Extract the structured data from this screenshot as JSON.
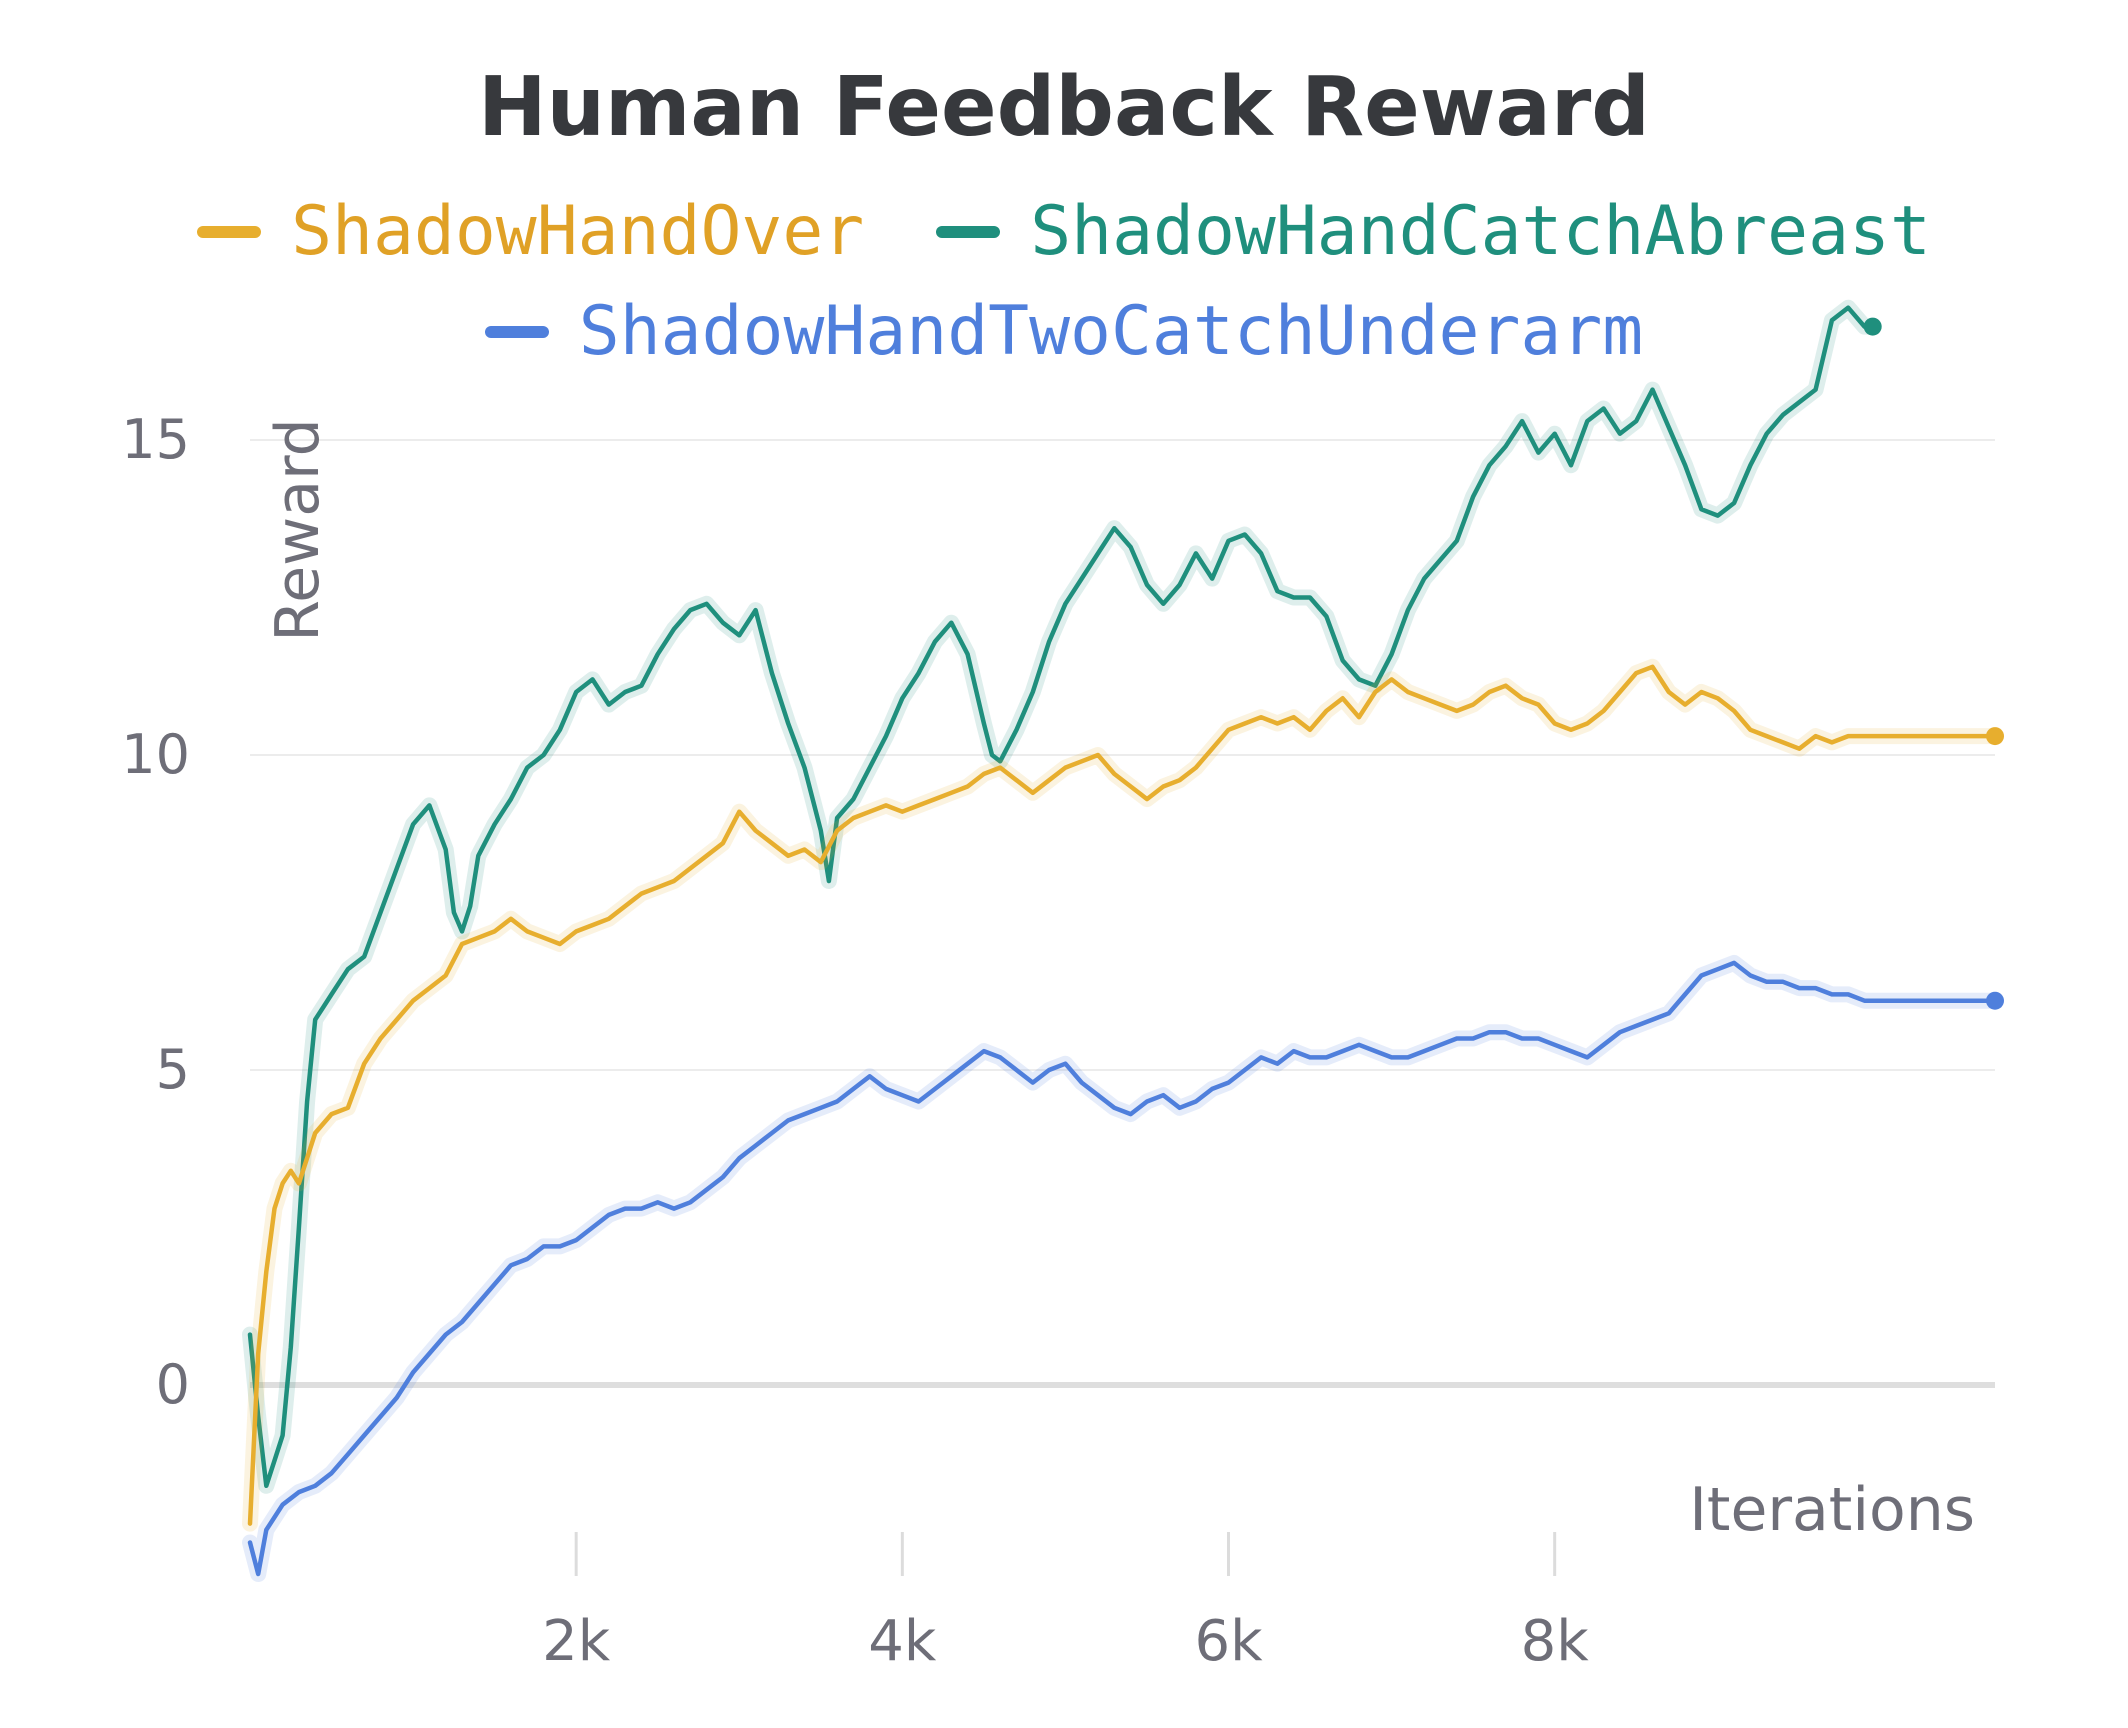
{
  "chart_data": {
    "type": "line",
    "title": "Human Feedback Reward",
    "xlabel": "Iterations",
    "ylabel": "Reward",
    "xlim": [
      0,
      10700
    ],
    "ylim": [
      -3.5,
      18.5
    ],
    "x_ticks": [
      {
        "value": 2000,
        "label": "2k"
      },
      {
        "value": 4000,
        "label": "4k"
      },
      {
        "value": 6000,
        "label": "6k"
      },
      {
        "value": 8000,
        "label": "8k"
      }
    ],
    "y_ticks": [
      {
        "value": 0,
        "label": "0"
      },
      {
        "value": 5,
        "label": "5"
      },
      {
        "value": 10,
        "label": "10"
      },
      {
        "value": 15,
        "label": "15"
      }
    ],
    "grid": "horizontal",
    "legend_position": "top",
    "series": [
      {
        "name": "ShadowHandOver",
        "color": "#e7ae2e",
        "x": [
          0,
          50,
          100,
          150,
          200,
          250,
          300,
          400,
          500,
          600,
          700,
          800,
          900,
          1000,
          1100,
          1200,
          1300,
          1400,
          1500,
          1600,
          1700,
          1800,
          1900,
          2000,
          2100,
          2200,
          2300,
          2400,
          2500,
          2600,
          2700,
          2800,
          2900,
          3000,
          3100,
          3200,
          3300,
          3400,
          3500,
          3600,
          3700,
          3800,
          3900,
          4000,
          4100,
          4200,
          4300,
          4400,
          4500,
          4600,
          4700,
          4800,
          4900,
          5000,
          5100,
          5200,
          5300,
          5400,
          5500,
          5600,
          5700,
          5800,
          5900,
          6000,
          6100,
          6200,
          6300,
          6400,
          6500,
          6600,
          6700,
          6800,
          6900,
          7000,
          7100,
          7200,
          7300,
          7400,
          7500,
          7600,
          7700,
          7800,
          7900,
          8000,
          8100,
          8200,
          8300,
          8400,
          8500,
          8600,
          8700,
          8800,
          8900,
          9000,
          9100,
          9200,
          9300,
          9400,
          9500,
          9600,
          9700,
          9800,
          9900,
          10000,
          10100,
          10200,
          10300,
          10400,
          10500,
          10600,
          10700
        ],
        "values": [
          -2.2,
          0.5,
          1.8,
          2.8,
          3.2,
          3.4,
          3.2,
          4.0,
          4.3,
          4.4,
          5.1,
          5.5,
          5.8,
          6.1,
          6.3,
          6.5,
          7.0,
          7.1,
          7.2,
          7.4,
          7.2,
          7.1,
          7.0,
          7.2,
          7.3,
          7.4,
          7.6,
          7.8,
          7.9,
          8.0,
          8.2,
          8.4,
          8.6,
          9.1,
          8.8,
          8.6,
          8.4,
          8.5,
          8.3,
          8.8,
          9.0,
          9.1,
          9.2,
          9.1,
          9.2,
          9.3,
          9.4,
          9.5,
          9.7,
          9.8,
          9.6,
          9.4,
          9.6,
          9.8,
          9.9,
          10.0,
          9.7,
          9.5,
          9.3,
          9.5,
          9.6,
          9.8,
          10.1,
          10.4,
          10.5,
          10.6,
          10.5,
          10.6,
          10.4,
          10.7,
          10.9,
          10.6,
          11.0,
          11.2,
          11.0,
          10.9,
          10.8,
          10.7,
          10.8,
          11.0,
          11.1,
          10.9,
          10.8,
          10.5,
          10.4,
          10.5,
          10.7,
          11.0,
          11.3,
          11.4,
          11.0,
          10.8,
          11.0,
          10.9,
          10.7,
          10.4,
          10.3,
          10.2,
          10.1,
          10.3,
          10.2,
          10.3,
          10.3,
          10.3,
          10.3,
          10.3,
          10.3,
          10.3,
          10.3,
          10.3,
          10.3
        ]
      },
      {
        "name": "ShadowHandCatchAbreast",
        "color": "#1f8f7d",
        "x": [
          0,
          50,
          100,
          150,
          200,
          250,
          300,
          350,
          400,
          450,
          500,
          600,
          700,
          800,
          900,
          1000,
          1100,
          1200,
          1250,
          1300,
          1350,
          1400,
          1500,
          1600,
          1700,
          1800,
          1900,
          2000,
          2100,
          2200,
          2300,
          2400,
          2500,
          2600,
          2700,
          2800,
          2900,
          3000,
          3100,
          3200,
          3300,
          3400,
          3500,
          3550,
          3600,
          3700,
          3800,
          3900,
          4000,
          4100,
          4200,
          4300,
          4400,
          4500,
          4550,
          4600,
          4700,
          4800,
          4900,
          5000,
          5100,
          5200,
          5300,
          5400,
          5500,
          5600,
          5700,
          5800,
          5900,
          6000,
          6100,
          6200,
          6300,
          6400,
          6500,
          6600,
          6700,
          6800,
          6900,
          7000,
          7100,
          7200,
          7300,
          7400,
          7500,
          7600,
          7700,
          7800,
          7900,
          8000,
          8100,
          8200,
          8300,
          8400,
          8500,
          8600,
          8700,
          8800,
          8900,
          9000,
          9100,
          9200,
          9300,
          9400,
          9500,
          9600,
          9700,
          9800,
          9900,
          9950
        ],
        "values": [
          0.8,
          -0.5,
          -1.6,
          -1.2,
          -0.8,
          0.6,
          2.5,
          4.5,
          5.8,
          6.0,
          6.2,
          6.6,
          6.8,
          7.5,
          8.2,
          8.9,
          9.2,
          8.5,
          7.5,
          7.2,
          7.6,
          8.4,
          8.9,
          9.3,
          9.8,
          10.0,
          10.4,
          11.0,
          11.2,
          10.8,
          11.0,
          11.1,
          11.6,
          12.0,
          12.3,
          12.4,
          12.1,
          11.9,
          12.3,
          11.3,
          10.5,
          9.8,
          8.8,
          8.0,
          9.0,
          9.3,
          9.8,
          10.3,
          10.9,
          11.3,
          11.8,
          12.1,
          11.6,
          10.5,
          10.0,
          9.9,
          10.4,
          11.0,
          11.8,
          12.4,
          12.8,
          13.2,
          13.6,
          13.3,
          12.7,
          12.4,
          12.7,
          13.2,
          12.8,
          13.4,
          13.5,
          13.2,
          12.6,
          12.5,
          12.5,
          12.2,
          11.5,
          11.2,
          11.1,
          11.6,
          12.3,
          12.8,
          13.1,
          13.4,
          14.1,
          14.6,
          14.9,
          15.3,
          14.8,
          15.1,
          14.6,
          15.3,
          15.5,
          15.1,
          15.3,
          15.8,
          15.2,
          14.6,
          13.9,
          13.8,
          14.0,
          14.6,
          15.1,
          15.4,
          15.6,
          15.8,
          16.9,
          17.1,
          16.8,
          16.8
        ]
      },
      {
        "name": "ShadowHandTwoCatchUnderarm",
        "color": "#4f7fdc",
        "x": [
          0,
          50,
          100,
          200,
          300,
          400,
          500,
          600,
          700,
          800,
          900,
          1000,
          1100,
          1200,
          1300,
          1400,
          1500,
          1600,
          1700,
          1800,
          1900,
          2000,
          2100,
          2200,
          2300,
          2400,
          2500,
          2600,
          2700,
          2800,
          2900,
          3000,
          3100,
          3200,
          3300,
          3400,
          3500,
          3600,
          3700,
          3800,
          3900,
          4000,
          4100,
          4200,
          4300,
          4400,
          4500,
          4600,
          4700,
          4800,
          4900,
          5000,
          5100,
          5200,
          5300,
          5400,
          5500,
          5600,
          5700,
          5800,
          5900,
          6000,
          6100,
          6200,
          6300,
          6400,
          6500,
          6600,
          6700,
          6800,
          6900,
          7000,
          7100,
          7200,
          7300,
          7400,
          7500,
          7600,
          7700,
          7800,
          7900,
          8000,
          8100,
          8200,
          8300,
          8400,
          8500,
          8600,
          8700,
          8800,
          8900,
          9000,
          9100,
          9200,
          9300,
          9400,
          9500,
          9600,
          9700,
          9800,
          9900,
          10000,
          10100,
          10200,
          10300,
          10400,
          10500,
          10600,
          10700
        ],
        "values": [
          -2.5,
          -3.0,
          -2.3,
          -1.9,
          -1.7,
          -1.6,
          -1.4,
          -1.1,
          -0.8,
          -0.5,
          -0.2,
          0.2,
          0.5,
          0.8,
          1.0,
          1.3,
          1.6,
          1.9,
          2.0,
          2.2,
          2.2,
          2.3,
          2.5,
          2.7,
          2.8,
          2.8,
          2.9,
          2.8,
          2.9,
          3.1,
          3.3,
          3.6,
          3.8,
          4.0,
          4.2,
          4.3,
          4.4,
          4.5,
          4.7,
          4.9,
          4.7,
          4.6,
          4.5,
          4.7,
          4.9,
          5.1,
          5.3,
          5.2,
          5.0,
          4.8,
          5.0,
          5.1,
          4.8,
          4.6,
          4.4,
          4.3,
          4.5,
          4.6,
          4.4,
          4.5,
          4.7,
          4.8,
          5.0,
          5.2,
          5.1,
          5.3,
          5.2,
          5.2,
          5.3,
          5.4,
          5.3,
          5.2,
          5.2,
          5.3,
          5.4,
          5.5,
          5.5,
          5.6,
          5.6,
          5.5,
          5.5,
          5.4,
          5.3,
          5.2,
          5.4,
          5.6,
          5.7,
          5.8,
          5.9,
          6.2,
          6.5,
          6.6,
          6.7,
          6.5,
          6.4,
          6.4,
          6.3,
          6.3,
          6.2,
          6.2,
          6.1,
          6.1,
          6.1,
          6.1,
          6.1,
          6.1,
          6.1,
          6.1,
          6.1
        ]
      }
    ]
  }
}
